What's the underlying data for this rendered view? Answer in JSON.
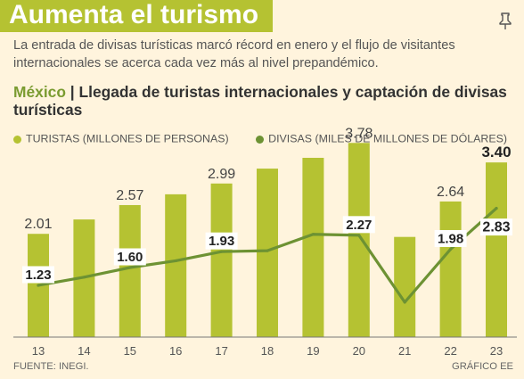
{
  "header": {
    "title": "Aumenta el turismo",
    "subtitle": "La entrada de divisas turísticas marcó récord en enero y el flujo de visitantes internacionales se acerca cada vez más al nivel prepandémico.",
    "chart_title_country": "México",
    "chart_title_separator": " | ",
    "chart_title_rest": "Llegada de turistas internacionales y captación de divisas turísticas",
    "pin_icon": "pin-icon"
  },
  "colors": {
    "bar": "#b5c232",
    "line": "#6d9233",
    "background": "#fff4dd",
    "header": "#b5c232"
  },
  "footer": {
    "source": "FUENTE: INEGI.",
    "credit": "GRÁFICO EE"
  },
  "chart_data": {
    "type": "bar",
    "categories": [
      "13",
      "14",
      "15",
      "16",
      "17",
      "18",
      "19",
      "20",
      "21",
      "22",
      "23"
    ],
    "series": [
      {
        "name": "TURISTAS (MILLONES DE PERSONAS)",
        "type": "bar",
        "values": [
          2.01,
          2.29,
          2.57,
          2.78,
          2.99,
          3.28,
          3.49,
          3.78,
          1.95,
          2.64,
          3.4
        ],
        "labels": [
          "2.01",
          "",
          "2.57",
          "",
          "2.99",
          "",
          "",
          "3.78",
          "",
          "2.64",
          "3.40"
        ]
      },
      {
        "name": "DIVISAS (MILES DE MILLONES DE DÓLARES)",
        "type": "line",
        "values": [
          1.23,
          1.4,
          1.6,
          1.74,
          1.93,
          1.95,
          2.29,
          2.27,
          0.88,
          1.98,
          2.83
        ],
        "labels": [
          "1.23",
          "",
          "1.60",
          "",
          "1.93",
          "",
          "",
          "2.27",
          "",
          "1.98",
          "2.83"
        ]
      }
    ],
    "legend_position": "top-left",
    "grid": false
  }
}
